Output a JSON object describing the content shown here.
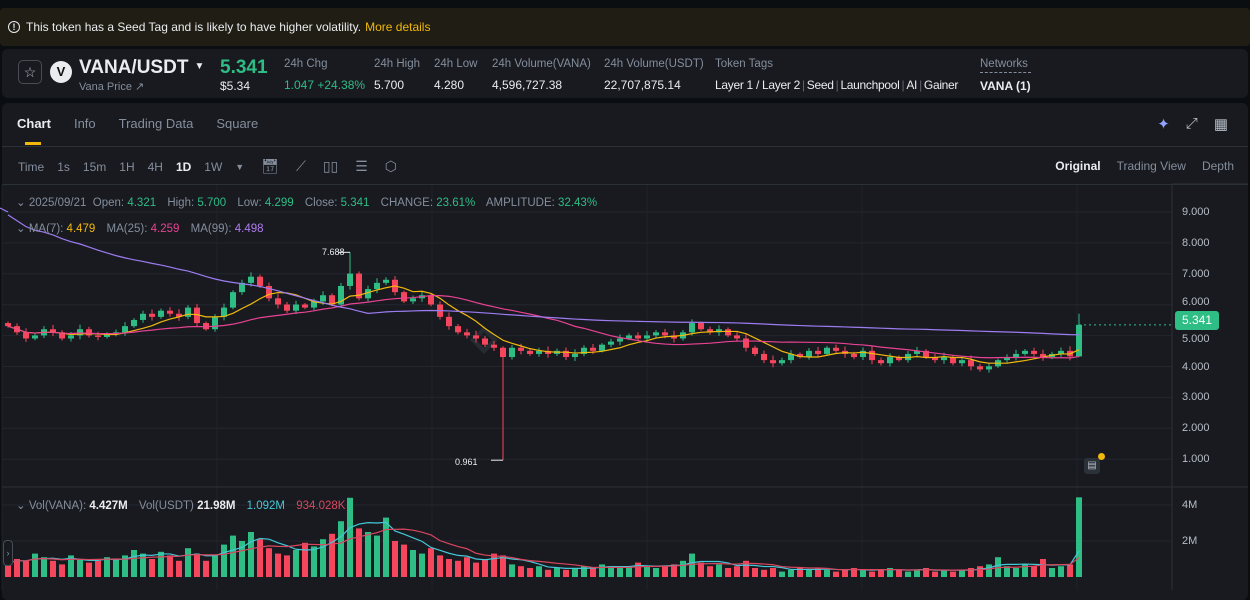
{
  "banner": {
    "text": "This token has a Seed Tag and is likely to have higher volatility.",
    "link": "More details"
  },
  "header": {
    "pair": "VANA/USDT",
    "subtitle": "Vana Price ↗",
    "last_price": "5.341",
    "last_price_usd": "$5.34",
    "stats": [
      {
        "label": "24h Chg",
        "value": "1.047 +24.38%"
      },
      {
        "label": "24h High",
        "value": "5.700"
      },
      {
        "label": "24h Low",
        "value": "4.280"
      },
      {
        "label": "24h Volume(VANA)",
        "value": "4,596,727.38"
      },
      {
        "label": "24h Volume(USDT)",
        "value": "22,707,875.14"
      }
    ],
    "token_tags_label": "Token Tags",
    "token_tags": [
      "Layer 1 / Layer 2",
      "Seed",
      "Launchpool",
      "AI",
      "Gainer"
    ],
    "networks_label": "Networks",
    "networks_value": "VANA (1)"
  },
  "tabs": [
    "Chart",
    "Info",
    "Trading Data",
    "Square"
  ],
  "toolbar": {
    "time_label": "Time",
    "intervals": [
      "1s",
      "15m",
      "1H",
      "4H",
      "1D",
      "1W"
    ],
    "active_interval": "1D"
  },
  "views": [
    "Original",
    "Trading View",
    "Depth"
  ],
  "ohlc": {
    "date": "2025/09/21",
    "open_label": "Open:",
    "open": "4.321",
    "high_label": "High:",
    "high": "5.700",
    "low_label": "Low:",
    "low": "4.299",
    "close_label": "Close:",
    "close": "5.341",
    "change_label": "CHANGE:",
    "change": "23.61%",
    "amplitude_label": "AMPLITUDE:",
    "amplitude": "32.43%"
  },
  "ma": {
    "ma7_label": "MA(7):",
    "ma7": "4.479",
    "ma25_label": "MA(25):",
    "ma25": "4.259",
    "ma99_label": "MA(99):",
    "ma99": "4.498"
  },
  "vol": {
    "vana_label": "Vol(VANA):",
    "vana": "4.427M",
    "usdt_label": "Vol(USDT)",
    "usdt": "21.98M",
    "ma5": "1.092M",
    "ma10": "934.028K"
  },
  "colors": {
    "up": "#2ebd85",
    "down": "#f6465d",
    "ma7": "#f0b90b",
    "ma25": "#e84393",
    "ma99": "#9d7cf0",
    "vol_ma5": "#45c7d8",
    "vol_ma10": "#d9475f",
    "accent": "#f0b90b"
  },
  "chart_data": {
    "type": "candlestick",
    "price_axis": {
      "ticks": [
        "9.000",
        "8.000",
        "7.000",
        "6.000",
        "5.000",
        "4.000",
        "3.000",
        "2.000",
        "1.000"
      ],
      "range": [
        0.5,
        9.5
      ]
    },
    "volume_axis": {
      "ticks": [
        "4M",
        "2M"
      ]
    },
    "current_price": "5.341",
    "annotations": {
      "max": "7.688",
      "min": "0.961"
    },
    "closes": [
      5.3,
      5.1,
      4.9,
      5.0,
      5.2,
      5.1,
      4.9,
      5.0,
      5.2,
      5.0,
      4.95,
      5.05,
      5.1,
      5.3,
      5.5,
      5.7,
      5.6,
      5.8,
      5.7,
      5.6,
      5.9,
      5.4,
      5.2,
      5.6,
      5.9,
      6.4,
      6.7,
      6.9,
      6.6,
      6.2,
      6.0,
      5.8,
      6.0,
      5.9,
      6.1,
      6.3,
      6.0,
      6.6,
      7.0,
      6.2,
      6.5,
      6.7,
      6.8,
      6.4,
      6.1,
      6.2,
      6.3,
      6.0,
      5.6,
      5.3,
      5.1,
      5.0,
      4.9,
      4.7,
      4.6,
      4.3,
      4.6,
      4.5,
      4.4,
      4.5,
      4.4,
      4.5,
      4.3,
      4.4,
      4.6,
      4.5,
      4.7,
      4.8,
      4.9,
      5.0,
      4.9,
      5.0,
      5.1,
      5.0,
      4.9,
      5.1,
      5.4,
      5.2,
      5.1,
      5.2,
      5.0,
      4.9,
      4.6,
      4.4,
      4.2,
      4.1,
      4.2,
      4.4,
      4.3,
      4.5,
      4.4,
      4.6,
      4.5,
      4.4,
      4.3,
      4.5,
      4.2,
      4.1,
      4.3,
      4.2,
      4.4,
      4.5,
      4.3,
      4.2,
      4.3,
      4.1,
      4.2,
      4.0,
      3.9,
      4.0,
      4.2,
      4.3,
      4.4,
      4.5,
      4.4,
      4.3,
      4.4,
      4.5,
      4.321,
      5.341
    ],
    "volumes_m": [
      0.8,
      1.0,
      0.9,
      1.3,
      1.1,
      0.9,
      0.7,
      1.2,
      1.0,
      0.8,
      0.9,
      1.1,
      1.0,
      1.2,
      1.5,
      1.3,
      1.0,
      1.4,
      1.2,
      0.9,
      1.6,
      1.3,
      0.9,
      1.2,
      1.8,
      2.3,
      2.0,
      2.5,
      2.1,
      1.6,
      1.3,
      1.2,
      1.5,
      1.9,
      1.7,
      2.1,
      2.4,
      3.1,
      4.4,
      2.7,
      2.5,
      2.3,
      3.3,
      2.0,
      1.8,
      1.5,
      1.3,
      1.6,
      1.2,
      1.0,
      0.9,
      1.1,
      0.8,
      1.0,
      1.3,
      1.2,
      0.7,
      0.6,
      0.5,
      0.6,
      0.4,
      0.5,
      0.4,
      0.5,
      0.6,
      0.5,
      0.7,
      0.6,
      0.5,
      0.6,
      0.8,
      0.6,
      0.5,
      0.6,
      0.7,
      0.9,
      1.3,
      0.8,
      0.6,
      0.7,
      0.5,
      0.6,
      0.9,
      0.5,
      0.4,
      0.5,
      0.3,
      0.4,
      0.5,
      0.4,
      0.5,
      0.4,
      0.3,
      0.4,
      0.5,
      0.4,
      0.3,
      0.4,
      0.5,
      0.4,
      0.3,
      0.4,
      0.5,
      0.3,
      0.4,
      0.3,
      0.4,
      0.5,
      0.6,
      0.7,
      1.1,
      0.6,
      0.5,
      0.7,
      0.6,
      1.0,
      0.5,
      0.6,
      0.7,
      4.427
    ],
    "last_candle": {
      "open": 4.321,
      "high": 5.7,
      "low": 4.299,
      "close": 5.341
    }
  }
}
